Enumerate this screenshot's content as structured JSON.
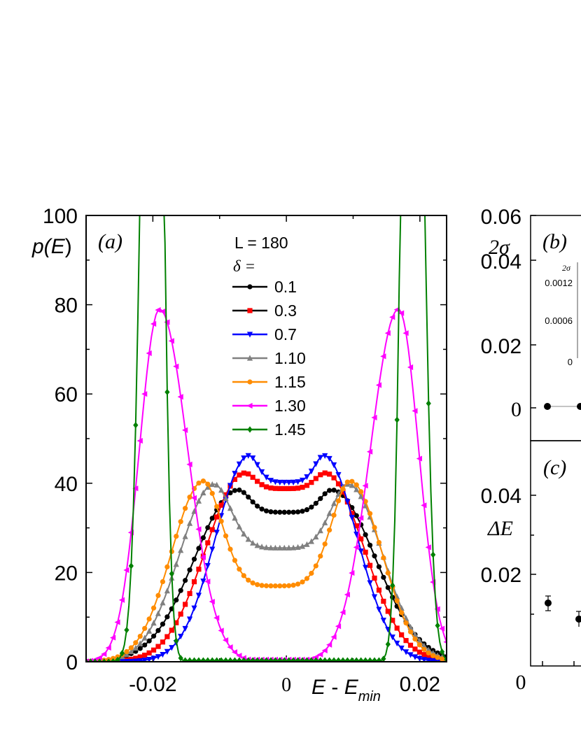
{
  "chart_data": [
    {
      "panel": "(a)",
      "type": "line",
      "ylabel_parts": [
        "p(",
        "E",
        ")"
      ],
      "xlabel_parts": [
        "E",
        " - ",
        "E",
        "min"
      ],
      "xlim": [
        -0.03,
        0.024
      ],
      "ylim": [
        0,
        100
      ],
      "x_tick_labels": [
        {
          "x": -0.02,
          "label": "-0.02"
        },
        {
          "x": 0,
          "label": "0"
        },
        {
          "x": 0.02,
          "label": "0.02"
        }
      ],
      "y_tick_labels": [
        "0",
        "20",
        "40",
        "60",
        "80",
        "100"
      ],
      "y_ticks": [
        0,
        20,
        40,
        60,
        80,
        100
      ],
      "legend": {
        "header_L": "L = 180",
        "header_delta": "δ =",
        "placement": "top-center"
      },
      "series": [
        {
          "name": "0.1",
          "color": "#000000",
          "marker": "circle",
          "w": 0.0098,
          "params": [
            [
              -0.0072,
              38.5,
              0.0062
            ],
            [
              0.0068,
              38.5,
              0.0062
            ]
          ],
          "dip": 0,
          "max": 38.5
        },
        {
          "name": "0.3",
          "color": "#ff0000",
          "marker": "square",
          "w": 0.0089,
          "params": [
            [
              -0.0062,
              42,
              0.0055
            ],
            [
              0.0058,
              42,
              0.0055
            ]
          ],
          "dip": 0,
          "max": 42.5
        },
        {
          "name": "0.7",
          "color": "#0000ff",
          "marker": "triangle-down",
          "w": 0.0082,
          "params": [
            [
              -0.0056,
              46,
              0.0046
            ],
            [
              0.0056,
              46,
              0.0046
            ]
          ],
          "dip": 0,
          "max": 46.5
        },
        {
          "name": "1.10",
          "color": "#808080",
          "marker": "triangle-up",
          "w": 0.0113,
          "params": [
            [
              -0.0108,
              39.5,
              0.0045
            ],
            [
              0.0092,
              39.5,
              0.0045
            ]
          ],
          "dip": 0,
          "max": 40
        },
        {
          "name": "1.15",
          "color": "#ff8c00",
          "marker": "circle",
          "w": 0.012,
          "params": [
            [
              -0.0125,
              40,
              0.0042
            ],
            [
              0.0095,
              40,
              0.0042
            ]
          ],
          "dip": 0,
          "max": 40.5
        },
        {
          "name": "1.30",
          "color": "#ff00ff",
          "marker": "triangle-left",
          "w": 0.0,
          "params": [
            [
              -0.019,
              78.5,
              0.0028
            ],
            [
              0.0168,
              79.5,
              0.0028
            ]
          ],
          "dip": 0.5,
          "max": 80
        },
        {
          "name": "1.45",
          "color": "#008000",
          "marker": "diamond",
          "w": 0.0,
          "params": [
            [
              -0.0198,
              260,
              0.0016
            ],
            [
              0.0186,
              260,
              0.0016
            ]
          ],
          "dip": 0.3,
          "max": 100
        }
      ]
    },
    {
      "panel": "(b)",
      "type": "scatter",
      "ylabel": "2σ",
      "y_tick_labels": [
        "0",
        "0.02",
        "0.04",
        "0.06"
      ],
      "ylim": [
        -0.01,
        0.06
      ],
      "inset": {
        "ylabel": "2σ",
        "y_tick_labels": [
          "0",
          "0.0006",
          "0.0012"
        ]
      },
      "points": [
        {
          "y": 0.0005
        },
        {
          "y": 0.0005
        }
      ]
    },
    {
      "panel": "(c)",
      "type": "scatter",
      "ylabel": "ΔE",
      "y_tick_labels": [
        "0",
        "0.02",
        "0.04"
      ],
      "ylim": [
        0,
        0.05
      ],
      "points": [
        {
          "y": 0.0145,
          "err": 0.0018
        },
        {
          "y": 0.0128,
          "err": 0.0018
        }
      ]
    }
  ]
}
